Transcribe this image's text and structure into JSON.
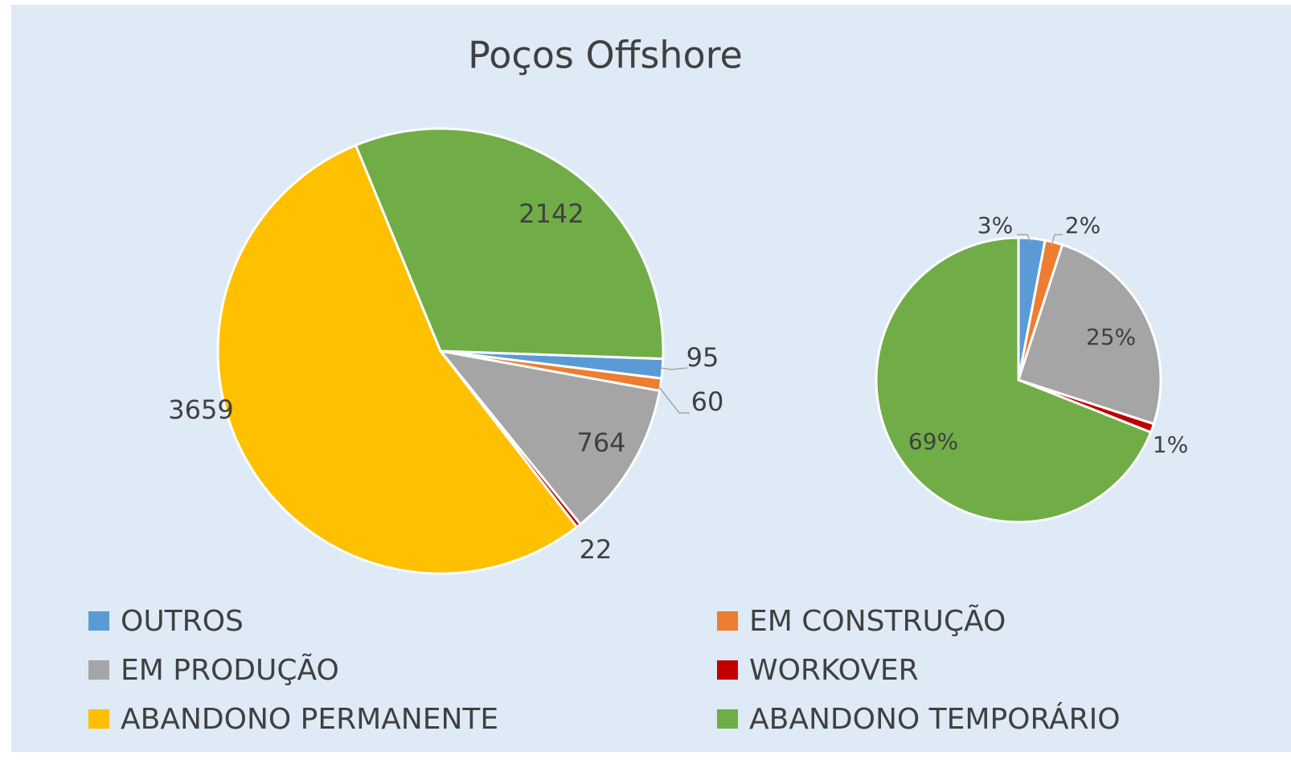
{
  "chart_data": [
    {
      "type": "pie",
      "title": "Poços Offshore",
      "categories": [
        "OUTROS",
        "EM CONSTRUÇÃO",
        "EM PRODUÇÃO",
        "WORKOVER",
        "ABANDONO PERMANENTE",
        "ABANDONO TEMPORÁRIO"
      ],
      "values": [
        95,
        60,
        764,
        22,
        3659,
        2142
      ],
      "colors": [
        "#5b9bd5",
        "#ed7d31",
        "#a5a5a5",
        "#c00000",
        "#ffc000",
        "#70ad47"
      ],
      "legend": "bottom"
    },
    {
      "type": "pie",
      "categories": [
        "OUTROS",
        "EM CONSTRUÇÃO",
        "EM PRODUÇÃO",
        "WORKOVER",
        "ABANDONO TEMPORÁRIO"
      ],
      "values": [
        3,
        2,
        25,
        1,
        69
      ],
      "value_labels": [
        "3%",
        "2%",
        "25%",
        "1%",
        "69%"
      ],
      "colors": [
        "#5b9bd5",
        "#ed7d31",
        "#a5a5a5",
        "#c00000",
        "#70ad47"
      ]
    }
  ]
}
